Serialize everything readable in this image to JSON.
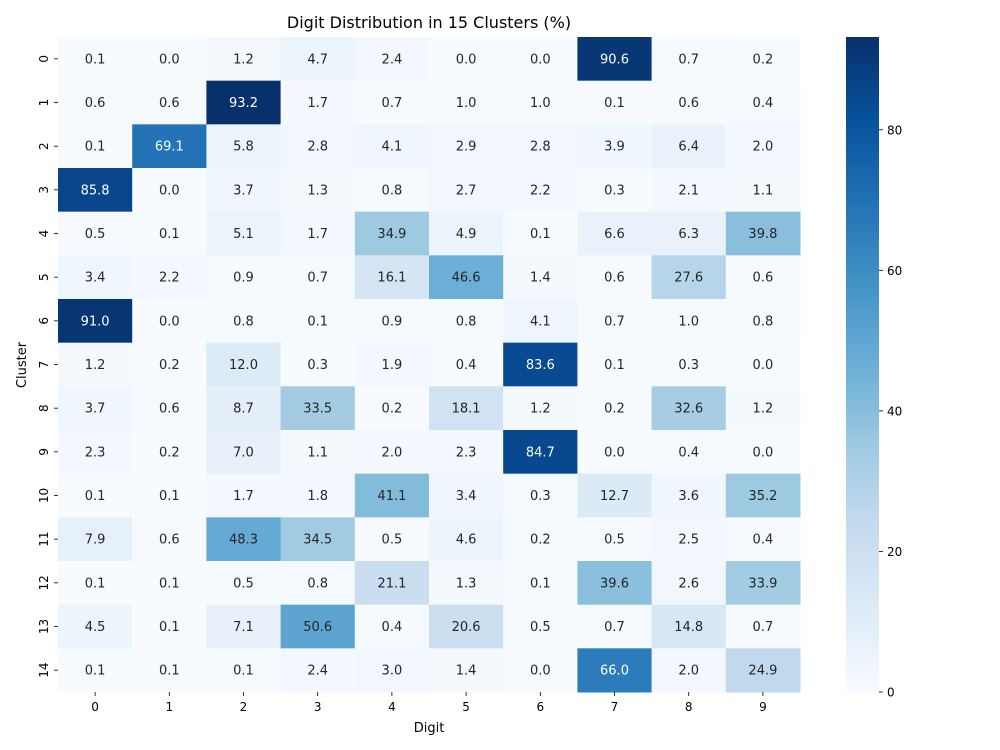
{
  "chart_data": {
    "type": "heatmap",
    "title": "Digit Distribution in 15 Clusters (%)",
    "xlabel": "Digit",
    "ylabel": "Cluster",
    "x_categories": [
      "0",
      "1",
      "2",
      "3",
      "4",
      "5",
      "6",
      "7",
      "8",
      "9"
    ],
    "y_categories": [
      "0",
      "1",
      "2",
      "3",
      "4",
      "5",
      "6",
      "7",
      "8",
      "9",
      "10",
      "11",
      "12",
      "13",
      "14"
    ],
    "values": [
      [
        0.1,
        0.0,
        1.2,
        4.7,
        2.4,
        0.0,
        0.0,
        90.6,
        0.7,
        0.2
      ],
      [
        0.6,
        0.6,
        93.2,
        1.7,
        0.7,
        1.0,
        1.0,
        0.1,
        0.6,
        0.4
      ],
      [
        0.1,
        69.1,
        5.8,
        2.8,
        4.1,
        2.9,
        2.8,
        3.9,
        6.4,
        2.0
      ],
      [
        85.8,
        0.0,
        3.7,
        1.3,
        0.8,
        2.7,
        2.2,
        0.3,
        2.1,
        1.1
      ],
      [
        0.5,
        0.1,
        5.1,
        1.7,
        34.9,
        4.9,
        0.1,
        6.6,
        6.3,
        39.8
      ],
      [
        3.4,
        2.2,
        0.9,
        0.7,
        16.1,
        46.6,
        1.4,
        0.6,
        27.6,
        0.6
      ],
      [
        91.0,
        0.0,
        0.8,
        0.1,
        0.9,
        0.8,
        4.1,
        0.7,
        1.0,
        0.8
      ],
      [
        1.2,
        0.2,
        12.0,
        0.3,
        1.9,
        0.4,
        83.6,
        0.1,
        0.3,
        0.0
      ],
      [
        3.7,
        0.6,
        8.7,
        33.5,
        0.2,
        18.1,
        1.2,
        0.2,
        32.6,
        1.2
      ],
      [
        2.3,
        0.2,
        7.0,
        1.1,
        2.0,
        2.3,
        84.7,
        0.0,
        0.4,
        0.0
      ],
      [
        0.1,
        0.1,
        1.7,
        1.8,
        41.1,
        3.4,
        0.3,
        12.7,
        3.6,
        35.2
      ],
      [
        7.9,
        0.6,
        48.3,
        34.5,
        0.5,
        4.6,
        0.2,
        0.5,
        2.5,
        0.4
      ],
      [
        0.1,
        0.1,
        0.5,
        0.8,
        21.1,
        1.3,
        0.1,
        39.6,
        2.6,
        33.9
      ],
      [
        4.5,
        0.1,
        7.1,
        50.6,
        0.4,
        20.6,
        0.5,
        0.7,
        14.8,
        0.7
      ],
      [
        0.1,
        0.1,
        0.1,
        2.4,
        3.0,
        1.4,
        0.0,
        66.0,
        2.0,
        24.9
      ]
    ],
    "value_range": [
      0,
      93.2
    ],
    "colormap": "Blues",
    "colorbar_ticks": [
      0,
      20,
      40,
      60,
      80
    ],
    "colorbar_position": "right",
    "grid": false
  }
}
